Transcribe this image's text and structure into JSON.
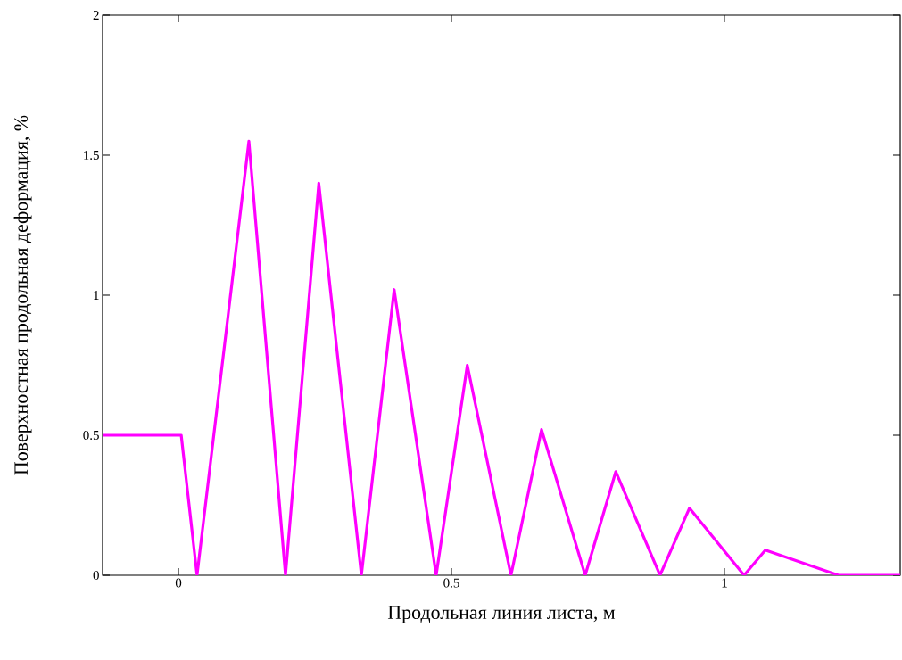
{
  "chart_data": {
    "type": "line",
    "xlabel": "Продольная линия листа, м",
    "ylabel": "Поверхностная продольная деформация, %",
    "x": [
      -0.139,
      0.005,
      0.034,
      0.129,
      0.196,
      0.257,
      0.335,
      0.395,
      0.472,
      0.529,
      0.609,
      0.665,
      0.745,
      0.801,
      0.882,
      0.936,
      1.036,
      1.075,
      1.209,
      1.322
    ],
    "series": [
      {
        "color": "#ff00ff",
        "values": [
          0.5,
          0.5,
          0,
          1.55,
          0,
          1.4,
          0,
          1.02,
          0,
          0.75,
          0,
          0.52,
          0,
          0.37,
          0,
          0.24,
          0,
          0.09,
          0,
          0
        ]
      }
    ],
    "xlim": [
      -0.139,
      1.322
    ],
    "ylim": [
      0,
      2
    ],
    "xticks": [
      0,
      0.5,
      1
    ],
    "yticks": [
      0,
      0.5,
      1,
      1.5,
      2
    ],
    "grid": false,
    "marker": "none",
    "line_style": "solid"
  }
}
